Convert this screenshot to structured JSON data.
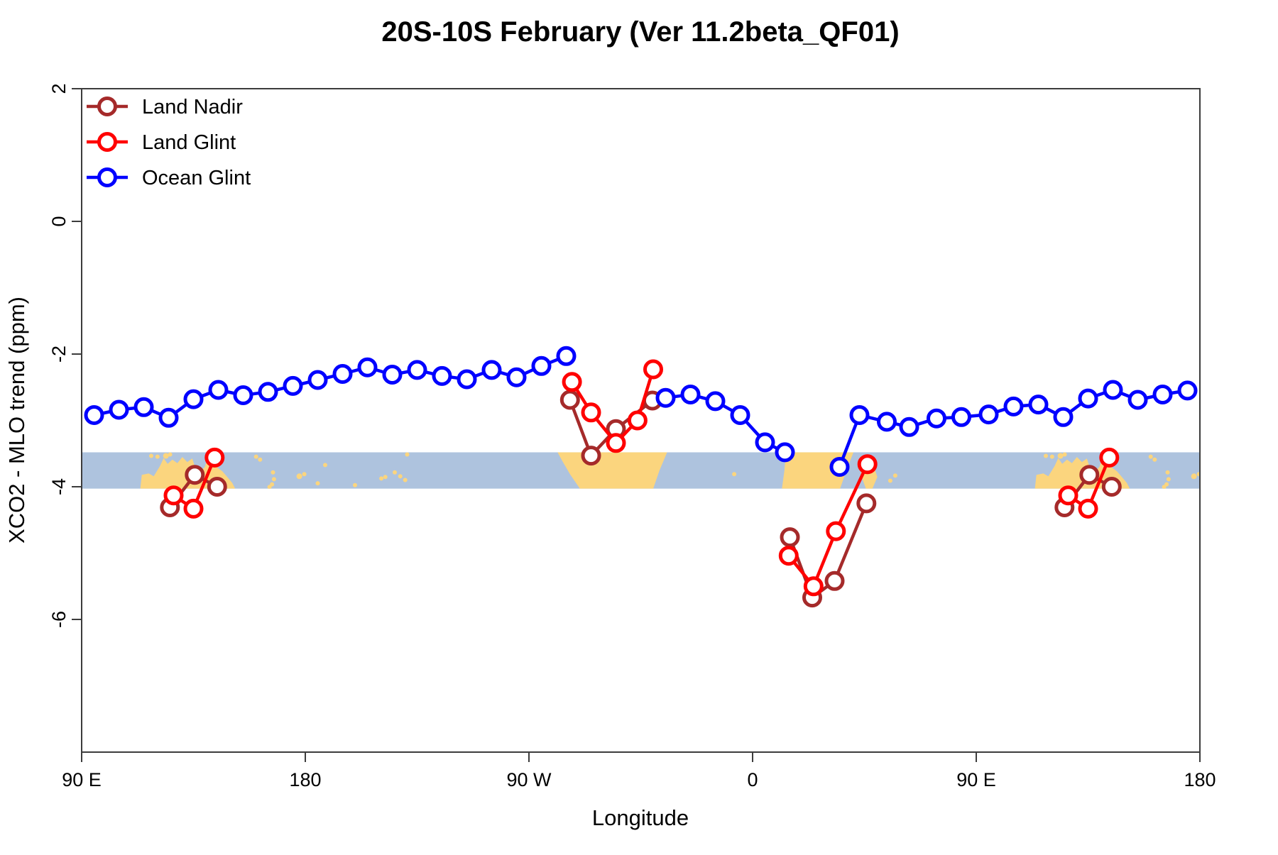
{
  "title": "20S-10S February (Ver 11.2beta_QF01)",
  "xlabel": "Longitude",
  "ylabel": "XCO2 - MLO trend (ppm)",
  "legend": [
    {
      "label": "Land Nadir",
      "color": "#A52A2A"
    },
    {
      "label": "Land Glint",
      "color": "#FF0000"
    },
    {
      "label": "Ocean Glint",
      "color": "#0000FF"
    }
  ],
  "colors": {
    "land_nadir": "#A52A2A",
    "land_glint": "#FF0000",
    "ocean_glint": "#0000FF",
    "band_ocean": "#AEC3DE",
    "band_land": "#FBD57E",
    "axis": "#3c3c3c"
  },
  "chart_data": {
    "type": "line",
    "title": "20S-10S February (Ver 11.2beta_QF01)",
    "xlabel": "Longitude",
    "ylabel": "XCO2 - MLO trend (ppm)",
    "xlim": [
      90,
      540
    ],
    "ylim": [
      -8,
      2
    ],
    "grid": false,
    "legend_position": "top-left",
    "xticks": [
      {
        "value": 90,
        "label": "90 E"
      },
      {
        "value": 180,
        "label": "180"
      },
      {
        "value": 270,
        "label": "90 W"
      },
      {
        "value": 360,
        "label": "0"
      },
      {
        "value": 450,
        "label": "90 E"
      },
      {
        "value": 540,
        "label": "180"
      }
    ],
    "yticks": [
      {
        "value": 2,
        "label": "2"
      },
      {
        "value": 0,
        "label": "0"
      },
      {
        "value": -2,
        "label": "-2"
      },
      {
        "value": -4,
        "label": "-4"
      },
      {
        "value": -6,
        "label": "-6"
      }
    ],
    "map_band": {
      "comment": "world-map strip 10S-20S drawn across plot, values in plot units",
      "y_top_value": -3.48,
      "y_bottom_value": -4.03,
      "land_polygons": [
        {
          "name": "australia",
          "repeats": [
            0,
            360
          ],
          "points": [
            [
              113.6,
              1
            ],
            [
              114.2,
              0.62
            ],
            [
              117,
              0.58
            ],
            [
              119,
              0.66
            ],
            [
              121.5,
              0.38
            ],
            [
              123,
              0.16
            ],
            [
              124.6,
              0.32
            ],
            [
              126.5,
              0.2
            ],
            [
              128.5,
              0.3
            ],
            [
              130.5,
              0.13
            ],
            [
              132.5,
              0.27
            ],
            [
              134.5,
              0.17
            ],
            [
              135.6,
              0.4
            ],
            [
              137.6,
              0.54
            ],
            [
              139.6,
              0.4
            ],
            [
              140.8,
              0.12
            ],
            [
              142.1,
              0.02
            ],
            [
              142.9,
              0.24
            ],
            [
              144.6,
              0.42
            ],
            [
              146.6,
              0.52
            ],
            [
              148.6,
              0.68
            ],
            [
              150.6,
              0.84
            ],
            [
              151.8,
              1
            ]
          ]
        },
        {
          "name": "south-america",
          "repeats": [
            0
          ],
          "points": [
            [
              281.5,
              0
            ],
            [
              325.6,
              0
            ],
            [
              322.5,
              0.5
            ],
            [
              320,
              1
            ],
            [
              290.5,
              1
            ],
            [
              286.5,
              0.6
            ],
            [
              283.5,
              0.25
            ]
          ]
        },
        {
          "name": "africa",
          "repeats": [
            0
          ],
          "points": [
            [
              373.4,
              0
            ],
            [
              400.6,
              0
            ],
            [
              398,
              0.45
            ],
            [
              395.2,
              1
            ],
            [
              371.8,
              1
            ],
            [
              372.8,
              0.5
            ]
          ]
        },
        {
          "name": "madagascar",
          "repeats": [
            0
          ],
          "points": [
            [
              404,
              0.3
            ],
            [
              406.3,
              0.18
            ],
            [
              408.6,
              0.35
            ],
            [
              410.2,
              0.68
            ],
            [
              408.2,
              1
            ],
            [
              405.6,
              1
            ],
            [
              403.6,
              0.62
            ]
          ]
        }
      ],
      "island_dots": [
        [
          118,
          0.1,
          3
        ],
        [
          120.5,
          0.12,
          3
        ],
        [
          123.9,
          0.1,
          4
        ],
        [
          125.6,
          0.06,
          3
        ],
        [
          160.2,
          0.12,
          3
        ],
        [
          161.8,
          0.2,
          3
        ],
        [
          167,
          0.55,
          3
        ],
        [
          167.4,
          0.74,
          3
        ],
        [
          165.6,
          0.95,
          3
        ],
        [
          166.6,
          0.88,
          3
        ],
        [
          177.6,
          0.66,
          4
        ],
        [
          179.6,
          0.6,
          3
        ],
        [
          185,
          0.85,
          3
        ],
        [
          188,
          0.35,
          3
        ],
        [
          200,
          0.9,
          3
        ],
        [
          210.6,
          0.72,
          3
        ],
        [
          212.2,
          0.68,
          3
        ],
        [
          216,
          0.55,
          3
        ],
        [
          218.2,
          0.66,
          3
        ],
        [
          220.2,
          0.76,
          3
        ],
        [
          221,
          0.06,
          3
        ],
        [
          352.6,
          0.6,
          3
        ],
        [
          415.4,
          0.78,
          3
        ],
        [
          417.4,
          0.64,
          3
        ],
        [
          478,
          0.1,
          3
        ],
        [
          480.5,
          0.12,
          3
        ],
        [
          483.9,
          0.1,
          4
        ],
        [
          485.6,
          0.06,
          3
        ],
        [
          520.2,
          0.12,
          3
        ],
        [
          521.8,
          0.2,
          3
        ],
        [
          527,
          0.55,
          3
        ],
        [
          527.4,
          0.74,
          3
        ],
        [
          525.6,
          0.95,
          3
        ],
        [
          526.6,
          0.88,
          3
        ],
        [
          537.6,
          0.66,
          4
        ],
        [
          539.6,
          0.6,
          3
        ]
      ]
    },
    "series": [
      {
        "name": "Land Nadir",
        "color": "#A52A2A",
        "segments": [
          [
            [
              125.5,
              -4.31
            ],
            [
              135.5,
              -3.82
            ],
            [
              144.5,
              -4.0
            ]
          ],
          [
            [
              286.5,
              -2.69
            ],
            [
              295,
              -3.53
            ],
            [
              305,
              -3.13
            ],
            [
              319.7,
              -2.7
            ]
          ],
          [
            [
              375,
              -4.76
            ],
            [
              384,
              -5.67
            ],
            [
              393,
              -5.42
            ],
            [
              405.8,
              -4.25
            ]
          ],
          [
            [
              485.5,
              -4.31
            ],
            [
              495.5,
              -3.82
            ],
            [
              504.5,
              -4.0
            ]
          ]
        ]
      },
      {
        "name": "Land Glint",
        "color": "#FF0000",
        "segments": [
          [
            [
              127,
              -4.13
            ],
            [
              135,
              -4.33
            ],
            [
              143.5,
              -3.56
            ]
          ],
          [
            [
              287.3,
              -2.42
            ],
            [
              295,
              -2.88
            ],
            [
              305,
              -3.34
            ],
            [
              313.7,
              -3.0
            ],
            [
              320,
              -2.23
            ]
          ],
          [
            [
              374.5,
              -5.04
            ],
            [
              384.5,
              -5.5
            ],
            [
              393.5,
              -4.67
            ],
            [
              406.2,
              -3.66
            ]
          ],
          [
            [
              487,
              -4.13
            ],
            [
              495,
              -4.33
            ],
            [
              503.5,
              -3.56
            ]
          ]
        ]
      },
      {
        "name": "Ocean Glint",
        "color": "#0000FF",
        "segments": [
          [
            [
              95,
              -2.92
            ],
            [
              105,
              -2.84
            ],
            [
              115,
              -2.8
            ],
            [
              125,
              -2.96
            ],
            [
              135,
              -2.68
            ],
            [
              145,
              -2.54
            ],
            [
              155,
              -2.62
            ],
            [
              165,
              -2.57
            ],
            [
              175,
              -2.48
            ],
            [
              185,
              -2.39
            ],
            [
              195,
              -2.3
            ],
            [
              205,
              -2.2
            ],
            [
              215,
              -2.31
            ],
            [
              225,
              -2.24
            ],
            [
              235,
              -2.33
            ],
            [
              245,
              -2.38
            ],
            [
              255,
              -2.24
            ],
            [
              265,
              -2.35
            ],
            [
              275,
              -2.18
            ],
            [
              285,
              -2.03
            ]
          ],
          [
            [
              325,
              -2.66
            ],
            [
              335,
              -2.61
            ],
            [
              345,
              -2.71
            ],
            [
              355,
              -2.92
            ],
            [
              365,
              -3.33
            ],
            [
              373,
              -3.48
            ]
          ],
          [
            [
              395,
              -3.7
            ],
            [
              403,
              -2.92
            ],
            [
              414,
              -3.02
            ],
            [
              423,
              -3.1
            ],
            [
              434,
              -2.97
            ],
            [
              444,
              -2.95
            ],
            [
              455,
              -2.91
            ],
            [
              465,
              -2.79
            ],
            [
              475,
              -2.76
            ],
            [
              485,
              -2.95
            ],
            [
              495,
              -2.67
            ],
            [
              505,
              -2.54
            ],
            [
              515,
              -2.69
            ],
            [
              525,
              -2.61
            ],
            [
              535,
              -2.55
            ]
          ]
        ]
      }
    ]
  }
}
